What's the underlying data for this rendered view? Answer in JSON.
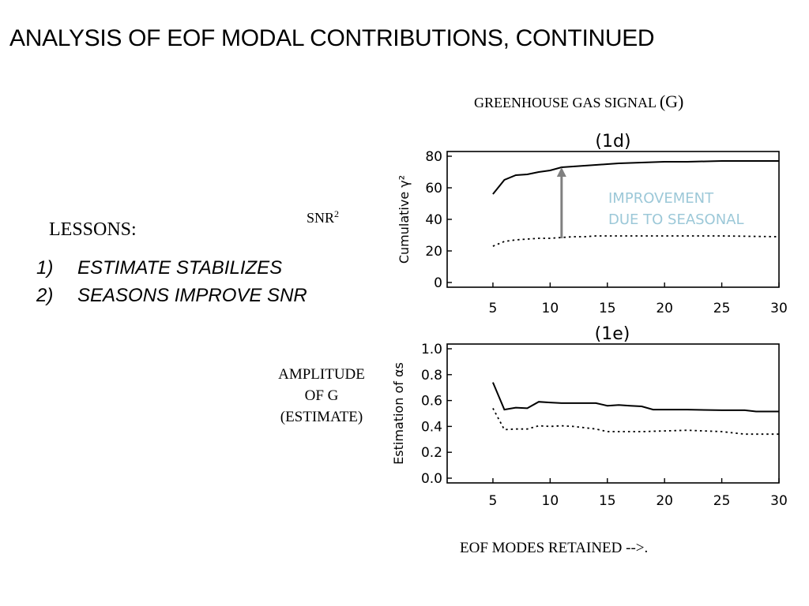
{
  "slide": {
    "title": "ANALYSIS OF EOF MODAL CONTRIBUTIONS, CONTINUED",
    "greenhouse_label": {
      "text": "GREENHOUSE GAS SIGNAL",
      "suffix": "(G)"
    },
    "snr_label": {
      "base": "SNR",
      "sup": "2"
    },
    "lessons_label": "LESSONS:",
    "lessons": [
      {
        "num": "1)",
        "text": "ESTIMATE STABILIZES"
      },
      {
        "num": "2)",
        "text": "SEASONS IMPROVE SNR"
      }
    ],
    "amplitude_label": [
      "AMPLITUDE",
      "OF G",
      "(ESTIMATE)"
    ],
    "x_axis_caption": "EOF MODES RETAINED -->.",
    "annotation": {
      "lines": [
        "IMPROVEMENT",
        "DUE TO SEASONAL"
      ],
      "color": "#9cc8d8",
      "arrow_color": "#808080"
    }
  },
  "chart_data": [
    {
      "type": "line",
      "panel_label": "(1d)",
      "title": "",
      "xlabel": "",
      "ylabel": "Cumulative γ²",
      "xlim": [
        1,
        30
      ],
      "ylim": [
        0,
        80
      ],
      "xticks": [
        5,
        10,
        15,
        20,
        25,
        30
      ],
      "yticks": [
        0,
        20,
        40,
        60,
        80
      ],
      "grid": false,
      "series": [
        {
          "style": "solid",
          "x": [
            5,
            6,
            7,
            8,
            9,
            10,
            11,
            12,
            13,
            14,
            15,
            16,
            18,
            20,
            22,
            25,
            30
          ],
          "values": [
            56,
            65,
            68,
            68.5,
            70,
            71,
            73,
            73.5,
            74,
            74.5,
            75,
            75.5,
            76,
            76.5,
            76.5,
            77,
            77
          ]
        },
        {
          "style": "dotted",
          "x": [
            5,
            6,
            7,
            8,
            9,
            10,
            11,
            12,
            13,
            14,
            15,
            16,
            18,
            20,
            22,
            25,
            30
          ],
          "values": [
            23,
            26,
            27,
            27.5,
            28,
            28,
            28.5,
            29,
            29,
            29.5,
            29.5,
            29.5,
            29.5,
            29.5,
            29.5,
            29.5,
            29
          ]
        }
      ]
    },
    {
      "type": "line",
      "panel_label": "(1e)",
      "title": "",
      "xlabel": "",
      "ylabel": "Estimation of αs",
      "xlim": [
        1,
        30
      ],
      "ylim": [
        0,
        1.0
      ],
      "xticks": [
        5,
        10,
        15,
        20,
        25,
        30
      ],
      "yticks": [
        0.0,
        0.2,
        0.4,
        0.6,
        0.8,
        1.0
      ],
      "grid": false,
      "series": [
        {
          "style": "solid",
          "x": [
            5,
            6,
            7,
            8,
            9,
            10,
            11,
            12,
            13,
            14,
            15,
            16,
            17,
            18,
            19,
            20,
            22,
            25,
            27,
            28,
            30
          ],
          "values": [
            0.74,
            0.53,
            0.545,
            0.54,
            0.59,
            0.585,
            0.58,
            0.58,
            0.58,
            0.58,
            0.56,
            0.565,
            0.56,
            0.555,
            0.53,
            0.53,
            0.53,
            0.525,
            0.525,
            0.515,
            0.515
          ]
        },
        {
          "style": "dotted",
          "x": [
            5,
            6,
            7,
            8,
            9,
            10,
            11,
            12,
            13,
            14,
            15,
            16,
            18,
            20,
            22,
            25,
            27,
            28,
            30
          ],
          "values": [
            0.54,
            0.375,
            0.38,
            0.38,
            0.405,
            0.4,
            0.405,
            0.4,
            0.39,
            0.38,
            0.36,
            0.36,
            0.36,
            0.365,
            0.37,
            0.36,
            0.34,
            0.34,
            0.34
          ]
        }
      ]
    }
  ]
}
